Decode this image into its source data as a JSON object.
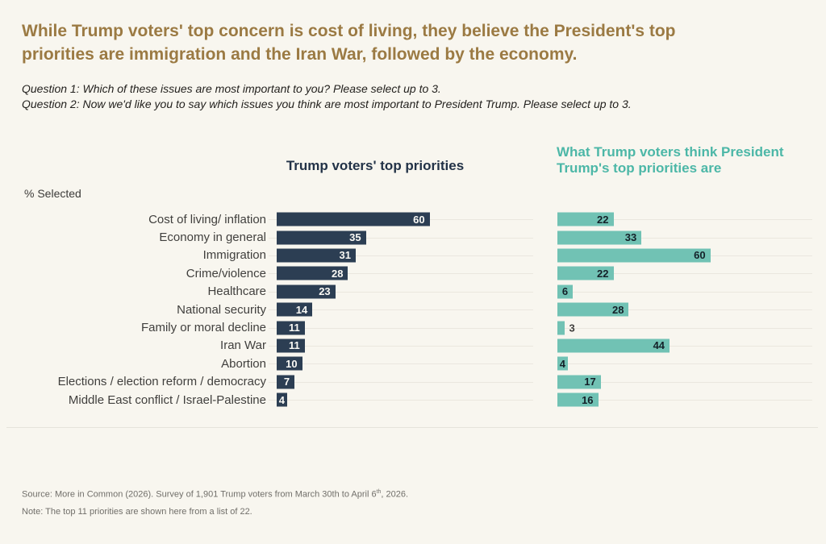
{
  "page": {
    "title": "While Trump voters' top concern is cost of living, they believe the President's top priorities are immigration and the Iran War, followed by the economy.",
    "questions": [
      "Question 1: Which of these issues are most important to you? Please select up to 3.",
      "Question 2: Now we'd like you to say which issues you think are most important to President Trump. Please select up to 3."
    ],
    "percent_selected_label": "% Selected",
    "footer": {
      "source_prefix": "Source: More in Common (2026). Survey of 1,901 Trump voters from March 30th to April 6",
      "source_sup": "th",
      "source_suffix": ", 2026.",
      "note": "Note: The top 11 priorities are shown here from a list of 22."
    }
  },
  "colors": {
    "background": "#f8f6ef",
    "title": "#9b7a43",
    "navy_bar": "#2c3e53",
    "teal_bar": "#71c2b4",
    "left_header": "#223247",
    "right_header": "#4cb7a7",
    "label_text": "#403f3d",
    "gridline": "#eae7df",
    "value_on_navy": "#faf9f5",
    "value_on_teal": "#142028",
    "footer_text": "#716f6a"
  },
  "chart_data": {
    "type": "bar",
    "orientation": "horizontal",
    "title_left": "Trump voters' top priorities",
    "title_right": "What Trump voters think President Trump's top priorities are",
    "value_axis": {
      "label": "% Selected",
      "min": 0,
      "max": 100
    },
    "grid": true,
    "data_labels": true,
    "categories": [
      "Cost of living/ inflation",
      "Economy in general",
      "Immigration",
      "Crime/violence",
      "Healthcare",
      "National security",
      "Family or moral decline",
      "Iran War",
      "Abortion",
      "Elections / election reform / democracy",
      "Middle East conflict / Israel-Palestine"
    ],
    "series": [
      {
        "name": "Trump voters' top priorities",
        "color": "#2c3e53",
        "values": [
          60,
          35,
          31,
          28,
          23,
          14,
          11,
          11,
          10,
          7,
          4
        ]
      },
      {
        "name": "What Trump voters think President Trump's top priorities are",
        "color": "#71c2b4",
        "values": [
          22,
          33,
          60,
          22,
          6,
          28,
          3,
          44,
          4,
          17,
          16
        ]
      }
    ]
  }
}
